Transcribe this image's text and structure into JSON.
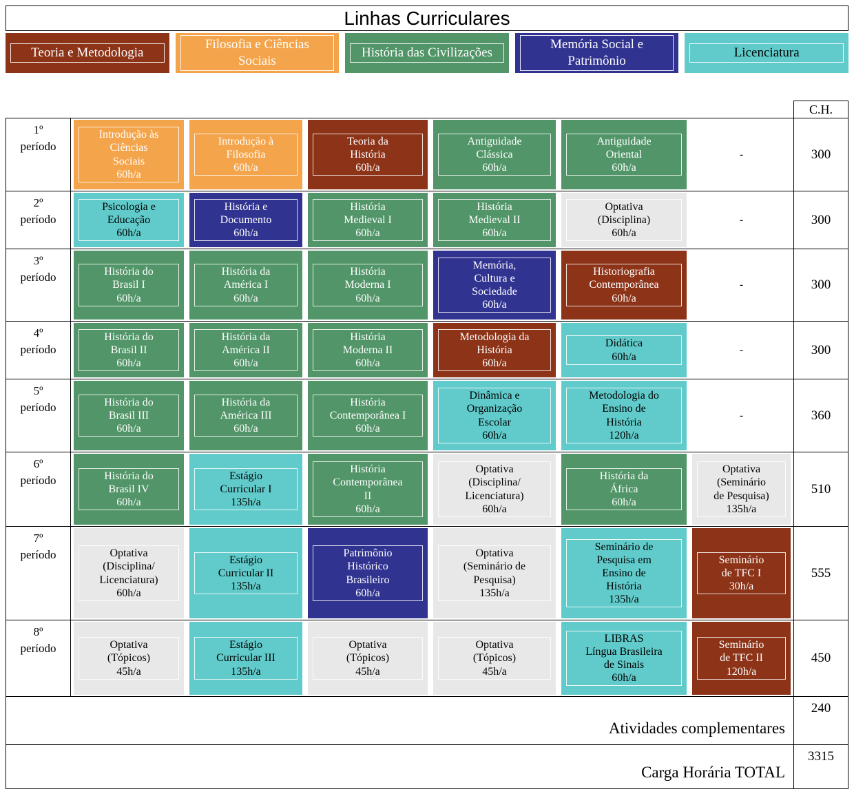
{
  "title": "Linhas Curriculares",
  "ch_header": "C.H.",
  "categories": {
    "teoria": {
      "name": "Teoria e Metodologia",
      "bg": "#8C3318",
      "fg": "#FFFFFF"
    },
    "filosofia": {
      "name": "Filosofia e Ciências Sociais",
      "bg": "#F4A44A",
      "fg": "#FFFFFF"
    },
    "civilizacoes": {
      "name": "História das Civilizações",
      "bg": "#519568",
      "fg": "#FFFFFF"
    },
    "memoria": {
      "name": "Memória Social e Patrimônio",
      "bg": "#313390",
      "fg": "#FFFFFF"
    },
    "licenciatura": {
      "name": "Licenciatura",
      "bg": "#61CBCB",
      "fg": "#000000"
    },
    "optativa": {
      "name": "Optativa",
      "bg": "#E8E8E8",
      "fg": "#000000"
    }
  },
  "legend_order": [
    "teoria",
    "filosofia",
    "civilizacoes",
    "memoria",
    "licenciatura"
  ],
  "rows": [
    {
      "period": "1º período",
      "ch": "300",
      "cells": [
        {
          "cat": "filosofia",
          "lines": [
            "Introdução às",
            "Ciências",
            "Sociais",
            "60h/a"
          ]
        },
        {
          "cat": "filosofia",
          "lines": [
            "Introdução à",
            "Filosofia",
            "60h/a"
          ]
        },
        {
          "cat": "teoria",
          "lines": [
            "Teoria da",
            "História",
            "60h/a"
          ]
        },
        {
          "cat": "civilizacoes",
          "lines": [
            "Antiguidade",
            "Clássica",
            "60h/a"
          ]
        },
        {
          "cat": "civilizacoes",
          "lines": [
            "Antiguidade",
            "Oriental",
            "60h/a"
          ]
        },
        {
          "cat": "dash",
          "lines": [
            "-"
          ]
        }
      ]
    },
    {
      "period": "2º período",
      "ch": "300",
      "cells": [
        {
          "cat": "licenciatura",
          "lines": [
            "Psicologia e",
            "Educação",
            "60h/a"
          ]
        },
        {
          "cat": "memoria",
          "lines": [
            "História e",
            "Documento",
            "60h/a"
          ]
        },
        {
          "cat": "civilizacoes",
          "lines": [
            "História",
            "Medieval I",
            "60h/a"
          ]
        },
        {
          "cat": "civilizacoes",
          "lines": [
            "História",
            "Medieval II",
            "60h/a"
          ]
        },
        {
          "cat": "optativa",
          "lines": [
            "Optativa",
            "(Disciplina)",
            "60h/a"
          ]
        },
        {
          "cat": "dash",
          "lines": [
            "-"
          ]
        }
      ]
    },
    {
      "period": "3º período",
      "ch": "300",
      "cells": [
        {
          "cat": "civilizacoes",
          "lines": [
            "História do",
            "Brasil I",
            "60h/a"
          ]
        },
        {
          "cat": "civilizacoes",
          "lines": [
            "História da",
            "América I",
            "60h/a"
          ]
        },
        {
          "cat": "civilizacoes",
          "lines": [
            "História",
            "Moderna I",
            "60h/a"
          ]
        },
        {
          "cat": "memoria",
          "lines": [
            "Memória,",
            "Cultura e",
            "Sociedade",
            "60h/a"
          ]
        },
        {
          "cat": "teoria",
          "lines": [
            "Historiografia",
            "Contemporânea",
            "60h/a"
          ]
        },
        {
          "cat": "dash",
          "lines": [
            "-"
          ]
        }
      ]
    },
    {
      "period": "4º período",
      "ch": "300",
      "cells": [
        {
          "cat": "civilizacoes",
          "lines": [
            "História do",
            "Brasil II",
            "60h/a"
          ]
        },
        {
          "cat": "civilizacoes",
          "lines": [
            "História da",
            "América II",
            "60h/a"
          ]
        },
        {
          "cat": "civilizacoes",
          "lines": [
            "História",
            "Moderna II",
            "60h/a"
          ]
        },
        {
          "cat": "teoria",
          "lines": [
            "Metodologia da",
            "História",
            "60h/a"
          ]
        },
        {
          "cat": "licenciatura",
          "lines": [
            "Didática",
            "60h/a"
          ]
        },
        {
          "cat": "dash",
          "lines": [
            "-"
          ]
        }
      ]
    },
    {
      "period": "5º período",
      "ch": "360",
      "cells": [
        {
          "cat": "civilizacoes",
          "lines": [
            "História do",
            "Brasil III",
            "60h/a"
          ]
        },
        {
          "cat": "civilizacoes",
          "lines": [
            "História da",
            "América III",
            "60h/a"
          ]
        },
        {
          "cat": "civilizacoes",
          "lines": [
            "História",
            "Contemporânea I",
            "60h/a"
          ]
        },
        {
          "cat": "licenciatura",
          "lines": [
            "Dinâmica e",
            "Organização",
            "Escolar",
            "60h/a"
          ]
        },
        {
          "cat": "licenciatura",
          "lines": [
            "Metodologia do",
            "Ensino de",
            "História",
            "120h/a"
          ]
        },
        {
          "cat": "dash",
          "lines": [
            "-"
          ]
        }
      ]
    },
    {
      "period": "6º período",
      "ch": "510",
      "cells": [
        {
          "cat": "civilizacoes",
          "lines": [
            "História do",
            "Brasil IV",
            "60h/a"
          ]
        },
        {
          "cat": "licenciatura",
          "lines": [
            "Estágio",
            "Curricular I",
            "135h/a"
          ]
        },
        {
          "cat": "civilizacoes",
          "lines": [
            "História",
            "Contemporânea",
            "II",
            "60h/a"
          ]
        },
        {
          "cat": "optativa",
          "lines": [
            "Optativa",
            "(Disciplina/",
            "Licenciatura)",
            "60h/a"
          ]
        },
        {
          "cat": "civilizacoes",
          "lines": [
            "História da",
            "África",
            "60h/a"
          ]
        },
        {
          "cat": "optativa",
          "lines": [
            "Optativa",
            "(Seminário",
            "de Pesquisa)",
            "135h/a"
          ]
        }
      ]
    },
    {
      "period": "7º período",
      "ch": "555",
      "cells": [
        {
          "cat": "optativa",
          "lines": [
            "Optativa",
            "(Disciplina/",
            "Licenciatura)",
            "60h/a"
          ]
        },
        {
          "cat": "licenciatura",
          "lines": [
            "Estágio",
            "Curricular II",
            "135h/a"
          ]
        },
        {
          "cat": "memoria",
          "lines": [
            "Patrimônio",
            "Histórico",
            "Brasileiro",
            "60h/a"
          ]
        },
        {
          "cat": "optativa",
          "lines": [
            "Optativa",
            "(Seminário de",
            "Pesquisa)",
            "135h/a"
          ]
        },
        {
          "cat": "licenciatura",
          "lines": [
            "Seminário de",
            "Pesquisa em",
            "Ensino de",
            "História",
            "135h/a"
          ]
        },
        {
          "cat": "teoria",
          "lines": [
            "Seminário",
            "de TFC I",
            "30h/a"
          ]
        }
      ]
    },
    {
      "period": "8º período",
      "ch": "450",
      "cells": [
        {
          "cat": "optativa",
          "lines": [
            "Optativa",
            "(Tópicos)",
            "45h/a"
          ]
        },
        {
          "cat": "licenciatura",
          "lines": [
            "Estágio",
            "Curricular III",
            "135h/a"
          ]
        },
        {
          "cat": "optativa",
          "lines": [
            "Optativa",
            "(Tópicos)",
            "45h/a"
          ]
        },
        {
          "cat": "optativa",
          "lines": [
            "Optativa",
            "(Tópicos)",
            "45h/a"
          ]
        },
        {
          "cat": "licenciatura",
          "lines": [
            "LIBRAS",
            "Língua Brasileira",
            "de Sinais",
            "60h/a"
          ]
        },
        {
          "cat": "teoria",
          "lines": [
            "Seminário",
            "de TFC II",
            "120h/a"
          ]
        }
      ]
    }
  ],
  "footer_rows": [
    {
      "label": "Atividades complementares",
      "ch": "240"
    },
    {
      "label": "Carga Horária TOTAL",
      "ch": "3315"
    }
  ]
}
